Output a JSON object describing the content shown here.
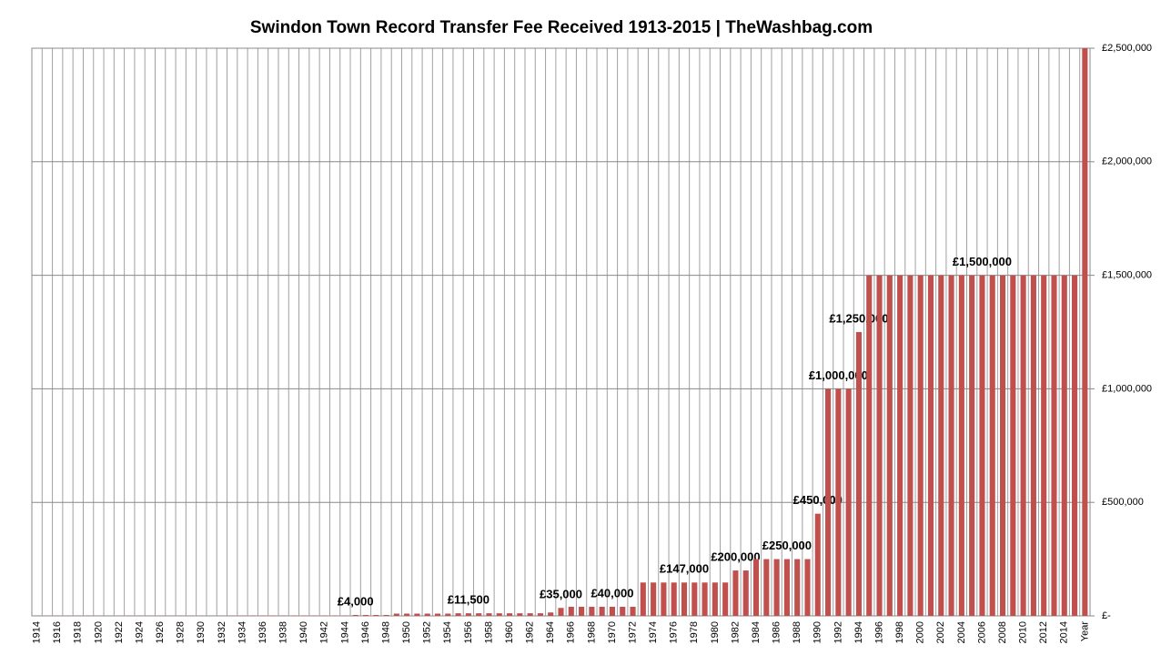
{
  "chart_data": {
    "type": "bar",
    "title": "Swindon Town Record Transfer Fee Received 1913-2015  |  TheWashbag.com",
    "categories": [
      "1914",
      null,
      "1916",
      null,
      "1918",
      null,
      "1920",
      null,
      "1922",
      null,
      "1924",
      null,
      "1926",
      null,
      "1928",
      null,
      "1930",
      null,
      "1932",
      null,
      "1934",
      null,
      "1936",
      null,
      "1938",
      null,
      "1940",
      null,
      "1942",
      null,
      "1944",
      null,
      "1946",
      null,
      "1948",
      null,
      "1950",
      null,
      "1952",
      null,
      "1954",
      null,
      "1956",
      null,
      "1958",
      null,
      "1960",
      null,
      "1962",
      null,
      "1964",
      null,
      "1966",
      null,
      "1968",
      null,
      "1970",
      null,
      "1972",
      null,
      "1974",
      null,
      "1976",
      null,
      "1978",
      null,
      "1980",
      null,
      "1982",
      null,
      "1984",
      null,
      "1986",
      null,
      "1988",
      null,
      "1990",
      null,
      "1992",
      null,
      "1994",
      null,
      "1996",
      null,
      "1998",
      null,
      "2000",
      null,
      "2002",
      null,
      "2004",
      null,
      "2006",
      null,
      "2008",
      null,
      "2010",
      null,
      "2012",
      null,
      "2014",
      null,
      "Year"
    ],
    "values": [
      1000,
      1000,
      1000,
      1000,
      1000,
      1000,
      1000,
      1000,
      1000,
      1000,
      1000,
      1000,
      1000,
      1000,
      1000,
      1000,
      1000,
      1000,
      1000,
      1000,
      2000,
      2000,
      2000,
      2000,
      2000,
      2000,
      2000,
      2000,
      2000,
      2000,
      2000,
      4000,
      4000,
      4000,
      4000,
      10000,
      10000,
      10000,
      10000,
      10000,
      10000,
      11500,
      11500,
      11500,
      11500,
      11500,
      11500,
      11500,
      11500,
      11500,
      15000,
      35000,
      40000,
      40000,
      40000,
      40000,
      40000,
      40000,
      40000,
      147000,
      147000,
      147000,
      147000,
      147000,
      147000,
      147000,
      147000,
      147000,
      200000,
      200000,
      250000,
      250000,
      250000,
      250000,
      250000,
      250000,
      450000,
      1000000,
      1000000,
      1000000,
      1250000,
      1500000,
      1500000,
      1500000,
      1500000,
      1500000,
      1500000,
      1500000,
      1500000,
      1500000,
      1500000,
      1500000,
      1500000,
      1500000,
      1500000,
      1500000,
      1500000,
      1500000,
      1500000,
      1500000,
      1500000,
      1500000,
      2500000
    ],
    "value_labels": [
      null,
      null,
      null,
      null,
      null,
      null,
      null,
      null,
      null,
      null,
      null,
      null,
      null,
      null,
      null,
      null,
      null,
      null,
      null,
      null,
      null,
      null,
      null,
      null,
      null,
      null,
      null,
      null,
      null,
      null,
      null,
      "£4,000",
      null,
      null,
      null,
      null,
      null,
      null,
      null,
      null,
      null,
      null,
      "£11,500",
      null,
      null,
      null,
      null,
      null,
      null,
      null,
      null,
      "£35,000",
      null,
      null,
      null,
      null,
      "£40,000",
      null,
      null,
      null,
      null,
      null,
      null,
      "£147,000",
      null,
      null,
      null,
      null,
      "£200,000",
      null,
      null,
      null,
      null,
      "£250,000",
      null,
      null,
      "£450,000",
      null,
      "£1,000,000",
      null,
      "£1,250,000",
      null,
      null,
      null,
      null,
      null,
      null,
      null,
      null,
      null,
      null,
      null,
      "£1,500,000",
      null,
      null,
      null,
      null,
      null,
      null,
      null,
      null,
      null,
      null
    ],
    "color": "#c0504d",
    "ylim": [
      0,
      2500000
    ],
    "yticks": [
      {
        "value": 0,
        "label": "£-"
      },
      {
        "value": 500000,
        "label": "£500,000"
      },
      {
        "value": 1000000,
        "label": "£1,000,000"
      },
      {
        "value": 1500000,
        "label": "£1,500,000"
      },
      {
        "value": 2000000,
        "label": "£2,000,000"
      },
      {
        "value": 2500000,
        "label": "£2,500,000"
      }
    ],
    "grid": true
  }
}
